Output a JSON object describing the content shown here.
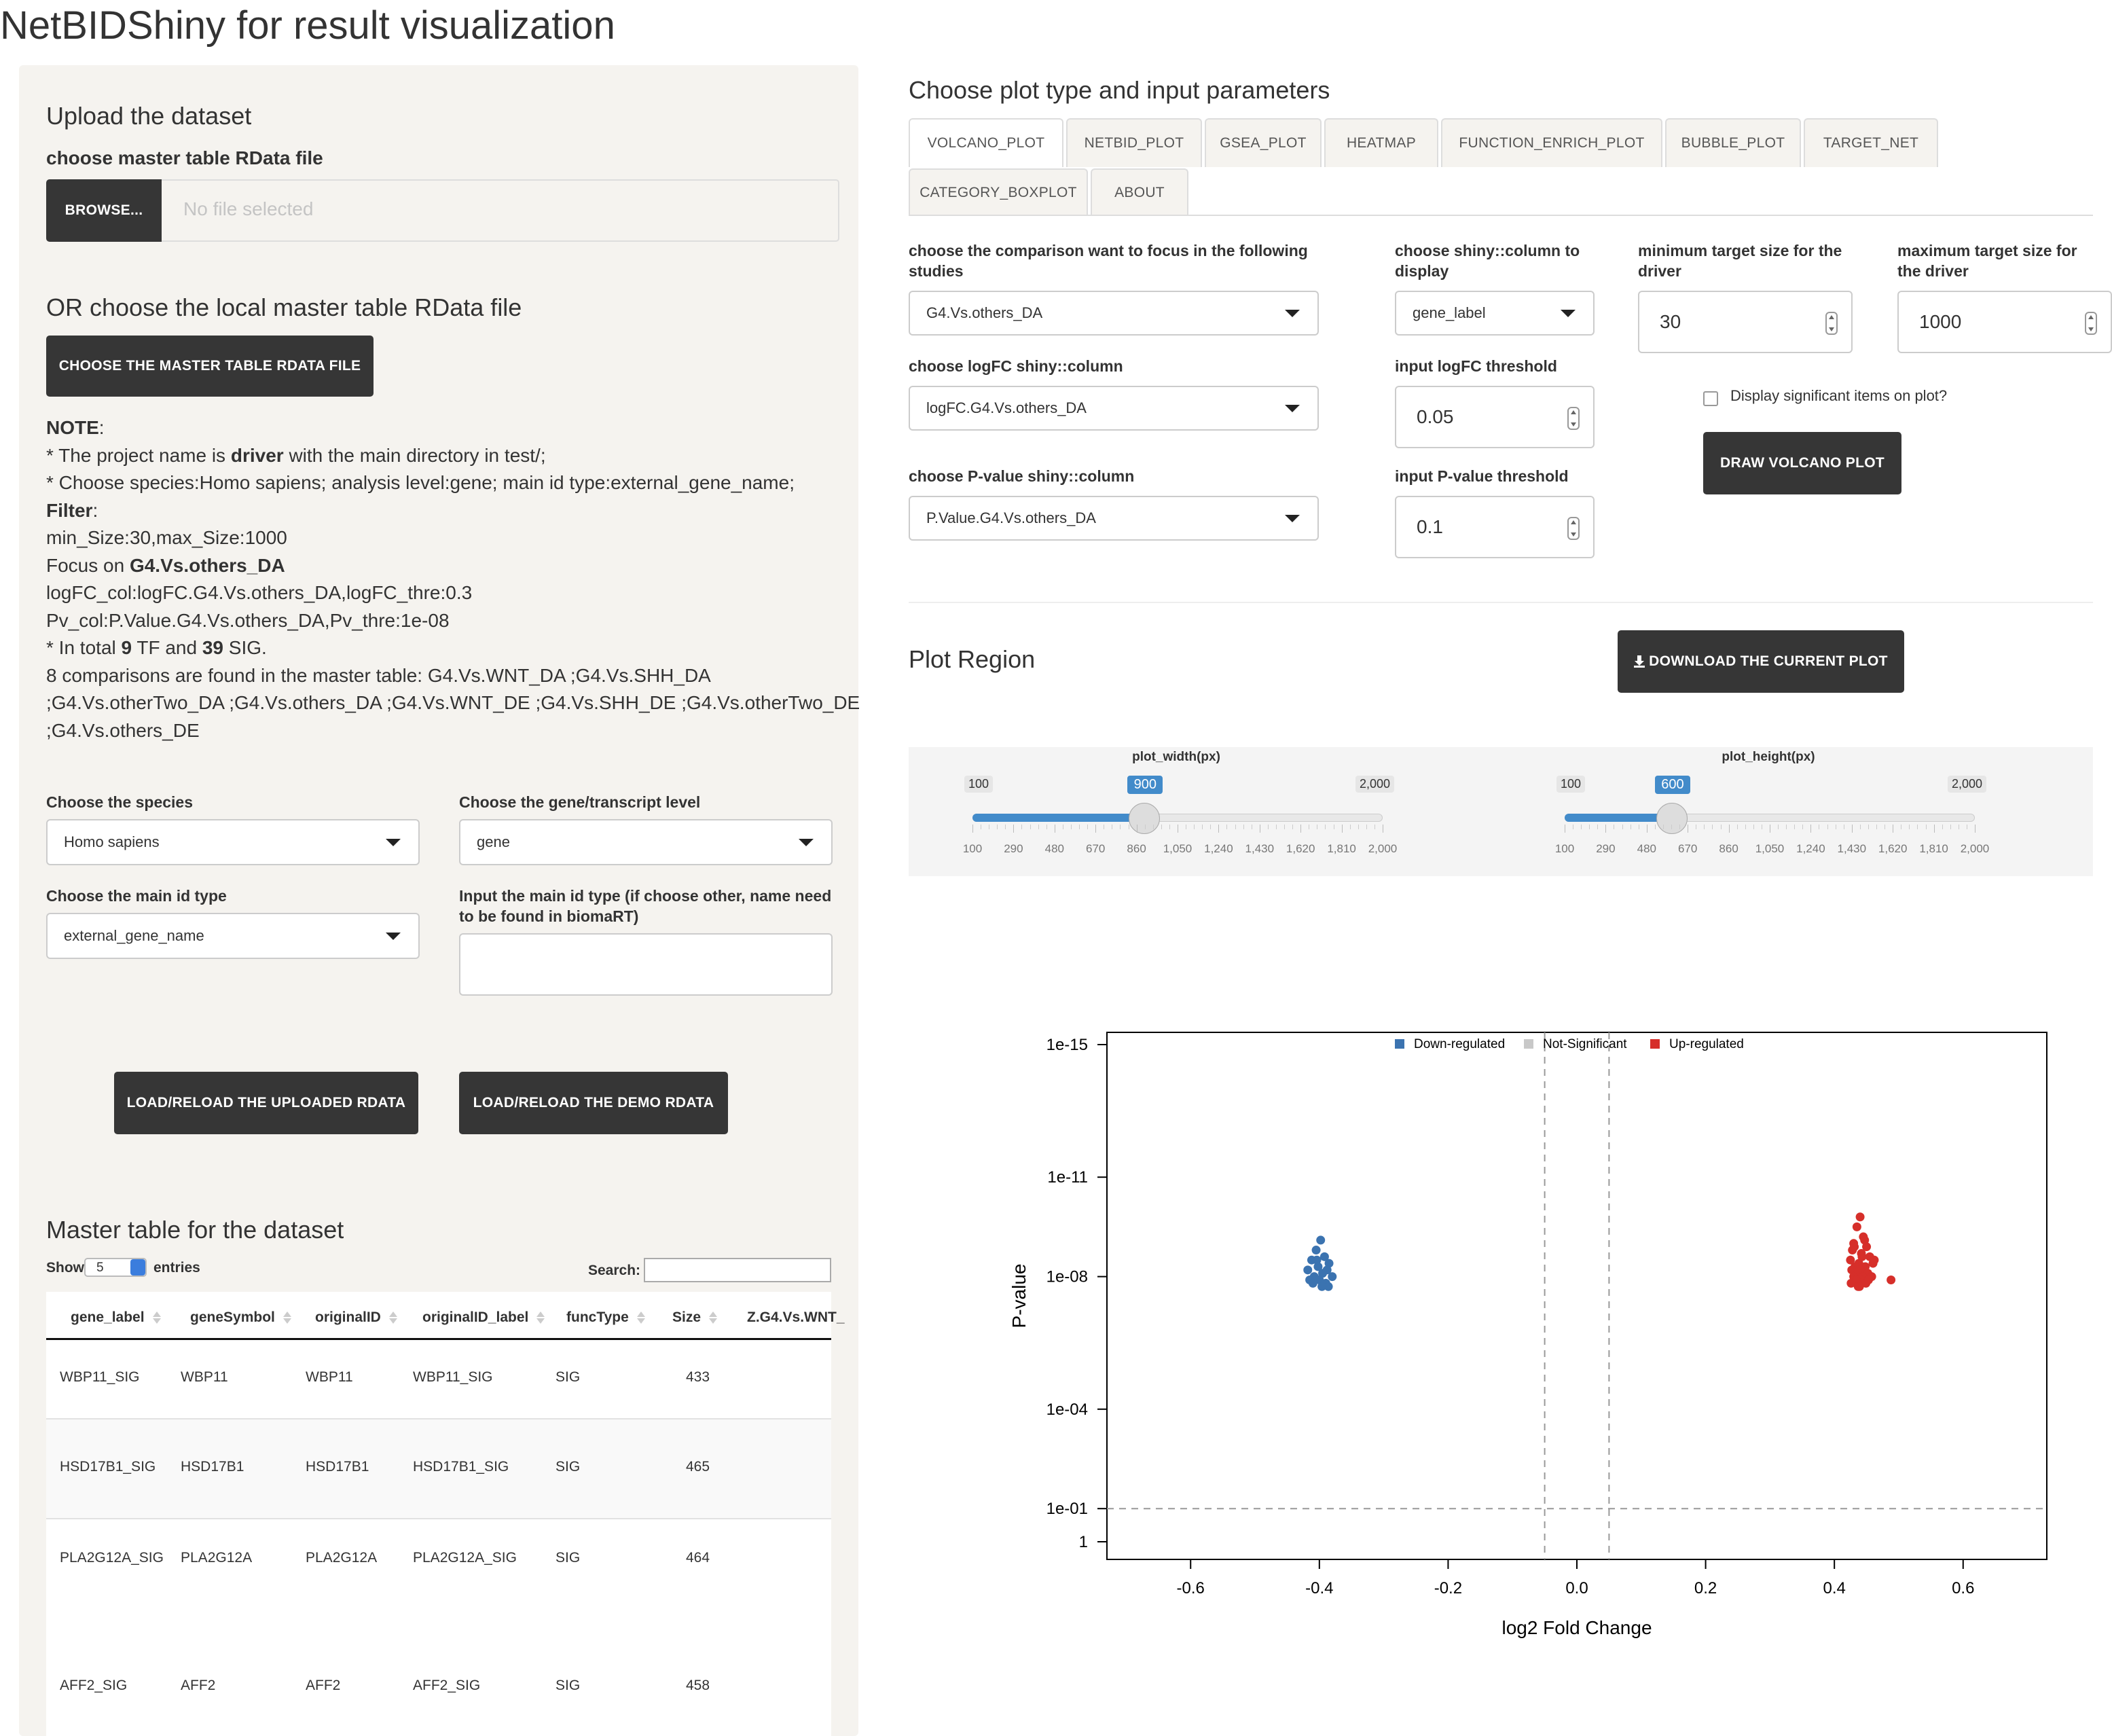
{
  "app_title": "NetBIDShiny for result visualization",
  "sidebar": {
    "upload_heading": "Upload the dataset",
    "file_label": "choose master table RData file",
    "browse_label": "BROWSE...",
    "file_placeholder": "No file selected",
    "local_heading": "OR choose the local master table RData file",
    "choose_local_button": "CHOOSE THE MASTER TABLE RDATA FILE",
    "note": {
      "l1": "NOTE",
      "l1b": ":",
      "l2a": "* The project name is ",
      "l2b": "driver",
      "l2c": " with the main directory in test/;",
      "l3": "* Choose species:Homo sapiens; analysis level:gene; main id type:external_gene_name;",
      "l4": "Filter",
      "l4b": ":",
      "l5": "min_Size:30,max_Size:1000",
      "l6a": "Focus on ",
      "l6b": "G4.Vs.others_DA",
      "l7": "logFC_col:logFC.G4.Vs.others_DA,logFC_thre:0.3",
      "l8": "Pv_col:P.Value.G4.Vs.others_DA,Pv_thre:1e-08",
      "l9a": "* In total ",
      "l9b": "9",
      "l9c": " TF and ",
      "l9d": "39",
      "l9e": " SIG.",
      "l10": "8 comparisons are found in the master table: G4.Vs.WNT_DA ;G4.Vs.SHH_DA",
      "l11": ";G4.Vs.otherTwo_DA ;G4.Vs.others_DA ;G4.Vs.WNT_DE ;G4.Vs.SHH_DE ;G4.Vs.otherTwo_DE",
      "l12": ";G4.Vs.others_DE"
    },
    "species_label": "Choose the species",
    "species_value": "Homo sapiens",
    "level_label": "Choose the gene/transcript level",
    "level_value": "gene",
    "idtype_label": "Choose the main id type",
    "idtype_value": "external_gene_name",
    "idinput_label": "Input the main id type (if choose other, name need to be found in biomaRT)",
    "idinput_value": "",
    "load_uploaded_button": "LOAD/RELOAD THE UPLOADED RDATA",
    "load_demo_button": "LOAD/RELOAD THE DEMO RDATA",
    "table_heading": "Master table for the dataset",
    "show_label": "Show",
    "show_value": "5",
    "entries_label": "entries",
    "search_label": "Search:",
    "search_value": "",
    "table": {
      "columns": [
        "gene_label",
        "geneSymbol",
        "originalID",
        "originalID_label",
        "funcType",
        "Size",
        "Z.G4.Vs.WNT_"
      ],
      "rows": [
        [
          "WBP11_SIG",
          "WBP11",
          "WBP11",
          "WBP11_SIG",
          "SIG",
          "433",
          ""
        ],
        [
          "HSD17B1_SIG",
          "HSD17B1",
          "HSD17B1",
          "HSD17B1_SIG",
          "SIG",
          "465",
          ""
        ],
        [
          "PLA2G12A_SIG",
          "PLA2G12A",
          "PLA2G12A",
          "PLA2G12A_SIG",
          "SIG",
          "464",
          ""
        ],
        [
          "AFF2_SIG",
          "AFF2",
          "AFF2",
          "AFF2_SIG",
          "SIG",
          "458",
          ""
        ]
      ]
    }
  },
  "main": {
    "heading": "Choose plot type and input parameters",
    "tabs": [
      "VOLCANO_PLOT",
      "NETBID_PLOT",
      "GSEA_PLOT",
      "HEATMAP",
      "FUNCTION_ENRICH_PLOT",
      "BUBBLE_PLOT",
      "TARGET_NET",
      "CATEGORY_BOXPLOT",
      "ABOUT"
    ],
    "active_tab": "VOLCANO_PLOT",
    "comparison_label": "choose the comparison want to focus in the following studies",
    "comparison_value": "G4.Vs.others_DA",
    "display_col_label": "choose shiny::column to display",
    "display_col_value": "gene_label",
    "min_size_label": "minimum target size for the driver",
    "min_size_value": "30",
    "max_size_label": "maximum target size for the driver",
    "max_size_value": "1000",
    "logfc_col_label": "choose logFC shiny::column",
    "logfc_col_value": "logFC.G4.Vs.others_DA",
    "logfc_thr_label": "input logFC threshold",
    "logfc_thr_value": "0.05",
    "display_sig_label": "Display significant items on plot?",
    "draw_button": "DRAW VOLCANO PLOT",
    "pval_col_label": "choose P-value shiny::column",
    "pval_col_value": "P.Value.G4.Vs.others_DA",
    "pval_thr_label": "input P-value threshold",
    "pval_thr_value": "0.1",
    "plot_region_heading": "Plot Region",
    "download_button": "DOWNLOAD THE CURRENT PLOT",
    "width_slider": {
      "label": "plot_width(px)",
      "min": "100",
      "max": "2,000",
      "value": "900",
      "ticks": [
        "100",
        "290",
        "480",
        "670",
        "860",
        "1,050",
        "1,240",
        "1,430",
        "1,620",
        "1,810",
        "2,000"
      ]
    },
    "height_slider": {
      "label": "plot_height(px)",
      "min": "100",
      "max": "2,000",
      "value": "600",
      "ticks": [
        "100",
        "290",
        "480",
        "670",
        "860",
        "1,050",
        "1,240",
        "1,430",
        "1,620",
        "1,810",
        "2,000"
      ]
    }
  },
  "chart_data": {
    "type": "scatter",
    "title": "",
    "xlabel": "log2 Fold Change",
    "ylabel": "P-value",
    "xlim": [
      -0.73,
      0.73
    ],
    "x_ticks": [
      "-0.6",
      "-0.4",
      "-0.2",
      "0.0",
      "0.2",
      "0.4",
      "0.6"
    ],
    "x_tick_values": [
      -0.6,
      -0.4,
      -0.2,
      0.0,
      0.2,
      0.4,
      0.6
    ],
    "y_axis": "-log10 scale",
    "ylim_neglog10": [
      0,
      15
    ],
    "y_ticks": [
      "1e-15",
      "1e-11",
      "1e-08",
      "1e-04",
      "1e-01",
      "1"
    ],
    "y_tick_neglog10": [
      15,
      11,
      8,
      4,
      1,
      0
    ],
    "thresholds": {
      "logFC": [
        -0.05,
        0.05
      ],
      "pvalue_neglog10": 1
    },
    "legend_position": "top",
    "legend": [
      {
        "name": "Down-regulated",
        "color": "#3b73b0"
      },
      {
        "name": "Not-Significant",
        "color": "#c8c8c8"
      },
      {
        "name": "Up-regulated",
        "color": "#d62f2a"
      }
    ],
    "series": [
      {
        "name": "Down-regulated",
        "color": "#3b73b0",
        "x": [
          -0.405,
          -0.398,
          -0.392,
          -0.412,
          -0.385,
          -0.402,
          -0.388,
          -0.418,
          -0.395,
          -0.408,
          -0.38,
          -0.415,
          -0.4,
          -0.39,
          -0.41,
          -0.386,
          -0.396,
          -0.404
        ],
        "y": [
          8.8,
          9.1,
          8.6,
          8.5,
          8.4,
          8.3,
          8.2,
          8.2,
          8.1,
          8.0,
          8.0,
          7.9,
          7.9,
          7.8,
          7.8,
          7.7,
          7.7,
          8.5
        ]
      },
      {
        "name": "Up-regulated",
        "color": "#d62f2a",
        "x": [
          0.44,
          0.435,
          0.445,
          0.43,
          0.45,
          0.428,
          0.442,
          0.455,
          0.425,
          0.438,
          0.46,
          0.432,
          0.448,
          0.44,
          0.427,
          0.452,
          0.436,
          0.444,
          0.43,
          0.458,
          0.441,
          0.434,
          0.449,
          0.426,
          0.437,
          0.488,
          0.462,
          0.443,
          0.431,
          0.447,
          0.439,
          0.453
        ],
        "y": [
          9.8,
          9.5,
          9.2,
          9.0,
          8.9,
          8.8,
          8.7,
          8.6,
          8.5,
          8.4,
          8.4,
          8.3,
          8.3,
          8.2,
          8.2,
          8.1,
          8.1,
          8.0,
          8.0,
          8.0,
          7.9,
          7.9,
          7.8,
          7.8,
          7.7,
          7.9,
          8.5,
          8.6,
          8.9,
          9.1,
          7.7,
          7.9
        ]
      }
    ]
  }
}
